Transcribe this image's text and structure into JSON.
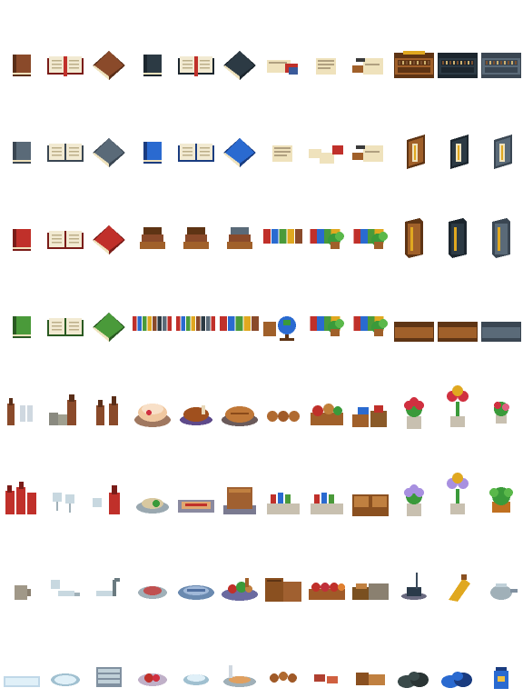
{
  "sheet": {
    "name": "furniture-items-tileset",
    "palette": {
      "brown": "#8a4a2a",
      "brown_dark": "#5a2e18",
      "red": "#c0302a",
      "red_dark": "#7a1c18",
      "green": "#4a9a3a",
      "green_dark": "#2a5a22",
      "navy": "#2c3a44",
      "navy_dark": "#1c262e",
      "blue": "#2a6ad0",
      "blue_dark": "#1a3c80",
      "slate": "#5a6a78",
      "slate_dark": "#3a4652",
      "page": "#f2ead2",
      "wood": "#a0602a",
      "wood_dark": "#5e3414",
      "gold": "#e0a820",
      "cream": "#efe2bc",
      "plant": "#3a9a3a",
      "flower_red": "#d03040",
      "flower_purple": "#a890e0"
    },
    "rows": [
      [
        "book-brown-standing-icon",
        "book-open-red-ribbon-icon",
        "book-brown-lying-icon",
        "book-navy-standing-icon",
        "book-open-navy-ribbon-icon",
        "book-navy-lying-icon",
        "paper-quill-stack-icon",
        "paper-note-icon",
        "paper-scroll-quill-icon",
        "bookshelf-top-wood-icon",
        "bookshelf-top-navy-icon",
        "bookshelf-top-slate-icon"
      ],
      [
        "book-slate-standing-icon",
        "book-open-slate-icon",
        "book-slate-lying-icon",
        "book-blue-standing-icon",
        "book-open-blue-icon",
        "book-blue-lying-icon",
        "paper-letter-icon",
        "paper-scattered-icon",
        "paper-stack-quill-icon",
        "bookcase-side-wood-icon",
        "bookcase-side-navy-icon",
        "bookcase-side-slate-icon"
      ],
      [
        "book-red-standing-icon",
        "book-open-red-icon",
        "book-red-lying-icon",
        "book-stack-brown-icon",
        "book-stack-tilted-icon",
        "book-stack-hat-icon",
        "books-row-small-icon",
        "books-plant-row-icon",
        "books-plant-short-icon",
        "bookcase-tall-wood-icon",
        "bookcase-tall-navy-icon",
        "bookcase-tall-slate-icon"
      ],
      [
        "book-green-standing-icon",
        "book-open-green-icon",
        "book-green-lying-icon",
        "books-row-long-icon",
        "books-row-long-end-icon",
        "books-row-short-icon",
        "globe-books-icon",
        "books-plant-row-2-icon",
        "books-plant-short-2-icon",
        "chest-wood-icon",
        "chest-wood-2-icon",
        "chest-slate-icon"
      ],
      [
        "bottle-glasses-icon",
        "bottles-mugs-icon",
        "bottles-pair-icon",
        "cake-plate-icon",
        "roast-chicken-icon",
        "pie-plate-icon",
        "bread-rolls-icon",
        "food-basket-mixed-icon",
        "crates-mixed-icon",
        "flower-pot-red-icon",
        "flower-pot-red-tall-icon",
        "flower-pot-small-icon"
      ],
      [
        "bottles-red-group-icon",
        "wine-glasses-icon",
        "glass-bottle-red-icon",
        "salad-plate-icon",
        "sandwich-tray-icon",
        "bread-loaf-tray-icon",
        "crate-books-icon",
        "crate-books-2-icon",
        "crate-open-icon",
        "flower-pot-purple-icon",
        "flower-pot-purple-tall-icon",
        "plant-pot-orange-icon"
      ],
      [
        "mug-icon",
        "glasses-toppled-icon",
        "glass-spilled-icon",
        "plate-meat-icon",
        "fish-platter-icon",
        "vegetable-platter-icon",
        "wood-crates-stack-icon",
        "produce-basket-icon",
        "bread-crates-icon",
        "inkwell-quill-icon",
        "potion-tilted-icon",
        "teapot-icon"
      ],
      [
        "tray-empty-icon",
        "plate-empty-icon",
        "plates-stack-icon",
        "plate-fruit-icon",
        "bowl-empty-icon",
        "plate-quill-icon",
        "rolls-small-icon",
        "bread-small-icon",
        "crate-small-icon",
        "rocks-dark-icon",
        "rocks-blue-icon",
        "jar-blue-icon"
      ]
    ]
  }
}
